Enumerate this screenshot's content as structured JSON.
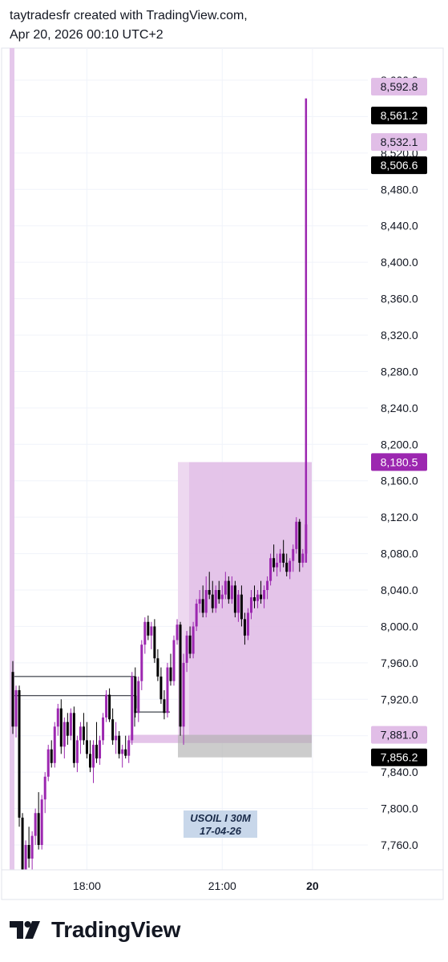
{
  "header": {
    "line1": "taytradesfr created with TradingView.com,",
    "line2": "Apr 20, 2026 00:10 UTC+2"
  },
  "footer": {
    "logo_text": "TradingView",
    "logo_icon": "tradingview-logo-icon"
  },
  "colors": {
    "accent": "#9c27b0",
    "zone": "#e1bee7",
    "candle_up": "#9c27b0",
    "candle_down": "#000000",
    "grid": "#f0f3fa",
    "watermark_bg": "#c8d7ea"
  },
  "chart_data": {
    "type": "candlestick",
    "symbol_label": "USOIL I 30M",
    "date_label": "17-04-26",
    "ylim": [
      7735,
      8620
    ],
    "y_ticks": [
      "7,760.0",
      "7,800.0",
      "7,840.0",
      "7,880.0",
      "7,920.0",
      "7,960.0",
      "8,000.0",
      "8,040.0",
      "8,080.0",
      "8,120.0",
      "8,160.0",
      "8,200.0",
      "8,240.0",
      "8,280.0",
      "8,320.0",
      "8,360.0",
      "8,400.0",
      "8,440.0",
      "8,480.0",
      "8,520.0",
      "8,560.0",
      "8,600.0"
    ],
    "x_ticks": [
      {
        "label": "18:00",
        "bar": 23,
        "bold": false
      },
      {
        "label": "21:00",
        "bar": 65,
        "bold": false
      },
      {
        "label": "20",
        "bar": 93,
        "bold": true
      }
    ],
    "price_labels": [
      {
        "value": "8,592.8",
        "style": "light"
      },
      {
        "value": "8,561.2",
        "style": "dark"
      },
      {
        "value": "8,532.1",
        "style": "light"
      },
      {
        "value": "8,506.6",
        "style": "dark"
      },
      {
        "value": "8,180.5",
        "style": "accent"
      },
      {
        "value": "7,881.0",
        "style": "light"
      },
      {
        "value": "7,856.2",
        "style": "dark"
      }
    ],
    "candles": [
      [
        7950,
        7962,
        7882,
        7890
      ],
      [
        7890,
        7935,
        7878,
        7930
      ],
      [
        7930,
        7935,
        7780,
        7790
      ],
      [
        7790,
        7795,
        7700,
        7720
      ],
      [
        7720,
        7765,
        7715,
        7760
      ],
      [
        7760,
        7780,
        7735,
        7745
      ],
      [
        7745,
        7775,
        7720,
        7770
      ],
      [
        7770,
        7800,
        7760,
        7795
      ],
      [
        7795,
        7818,
        7755,
        7760
      ],
      [
        7760,
        7815,
        7755,
        7810
      ],
      [
        7810,
        7840,
        7795,
        7835
      ],
      [
        7835,
        7870,
        7830,
        7865
      ],
      [
        7865,
        7875,
        7845,
        7850
      ],
      [
        7850,
        7895,
        7845,
        7890
      ],
      [
        7890,
        7915,
        7880,
        7910
      ],
      [
        7910,
        7920,
        7860,
        7868
      ],
      [
        7868,
        7900,
        7855,
        7895
      ],
      [
        7895,
        7905,
        7870,
        7880
      ],
      [
        7880,
        7910,
        7875,
        7905
      ],
      [
        7905,
        7912,
        7845,
        7850
      ],
      [
        7850,
        7880,
        7840,
        7875
      ],
      [
        7875,
        7895,
        7860,
        7890
      ],
      [
        7890,
        7905,
        7870,
        7875
      ],
      [
        7875,
        7895,
        7855,
        7860
      ],
      [
        7860,
        7875,
        7840,
        7845
      ],
      [
        7845,
        7875,
        7828,
        7870
      ],
      [
        7870,
        7895,
        7850,
        7855
      ],
      [
        7855,
        7880,
        7848,
        7875
      ],
      [
        7875,
        7905,
        7870,
        7900
      ],
      [
        7900,
        7930,
        7895,
        7925
      ],
      [
        7925,
        7932,
        7895,
        7898
      ],
      [
        7898,
        7910,
        7870,
        7875
      ],
      [
        7875,
        7895,
        7860,
        7880
      ],
      [
        7880,
        7885,
        7855,
        7860
      ],
      [
        7860,
        7870,
        7845,
        7865
      ],
      [
        7865,
        7880,
        7855,
        7858
      ],
      [
        7858,
        7880,
        7850,
        7875
      ],
      [
        7875,
        7950,
        7870,
        7945
      ],
      [
        7945,
        7955,
        7900,
        7905
      ],
      [
        7905,
        7945,
        7895,
        7940
      ],
      [
        7940,
        7985,
        7930,
        7980
      ],
      [
        7980,
        8010,
        7970,
        8005
      ],
      [
        8005,
        8012,
        7985,
        7990
      ],
      [
        7990,
        8005,
        7975,
        8000
      ],
      [
        8000,
        8008,
        7960,
        7965
      ],
      [
        7965,
        7975,
        7940,
        7945
      ],
      [
        7945,
        7955,
        7915,
        7920
      ],
      [
        7920,
        7930,
        7898,
        7905
      ],
      [
        7905,
        7960,
        7900,
        7955
      ],
      [
        7955,
        7970,
        7935,
        7940
      ],
      [
        7940,
        7990,
        7935,
        7985
      ],
      [
        7985,
        8008,
        7980,
        8002
      ],
      [
        8002,
        8005,
        7880,
        7890
      ],
      [
        7890,
        7970,
        7870,
        7960
      ],
      [
        7960,
        7995,
        7950,
        7990
      ],
      [
        7990,
        8000,
        7965,
        7970
      ],
      [
        7970,
        8005,
        7965,
        8000
      ],
      [
        8000,
        8030,
        7995,
        8025
      ],
      [
        8025,
        8040,
        8015,
        8030
      ],
      [
        8030,
        8045,
        8010,
        8015
      ],
      [
        8015,
        8055,
        8010,
        8040
      ],
      [
        8040,
        8060,
        8030,
        8035
      ],
      [
        8035,
        8050,
        8015,
        8020
      ],
      [
        8020,
        8045,
        8015,
        8040
      ],
      [
        8040,
        8050,
        8025,
        8030
      ],
      [
        8030,
        8045,
        8020,
        8035
      ],
      [
        8035,
        8060,
        8030,
        8050
      ],
      [
        8050,
        8055,
        8025,
        8030
      ],
      [
        8030,
        8055,
        8025,
        8045
      ],
      [
        8045,
        8050,
        8010,
        8015
      ],
      [
        8015,
        8040,
        8005,
        8035
      ],
      [
        8035,
        8045,
        8000,
        8008
      ],
      [
        8008,
        8015,
        7980,
        7990
      ],
      [
        7990,
        8020,
        7985,
        8015
      ],
      [
        8015,
        8040,
        8008,
        8032
      ],
      [
        8032,
        8045,
        8020,
        8028
      ],
      [
        8028,
        8040,
        8020,
        8035
      ],
      [
        8035,
        8050,
        8025,
        8030
      ],
      [
        8030,
        8045,
        8020,
        8040
      ],
      [
        8040,
        8055,
        8030,
        8050
      ],
      [
        8050,
        8080,
        8045,
        8075
      ],
      [
        8075,
        8090,
        8060,
        8065
      ],
      [
        8065,
        8080,
        8055,
        8070
      ],
      [
        8070,
        8085,
        8060,
        8080
      ],
      [
        8080,
        8095,
        8065,
        8070
      ],
      [
        8070,
        8080,
        8055,
        8060
      ],
      [
        8060,
        8075,
        8052,
        8072
      ],
      [
        8072,
        8090,
        8060,
        8085
      ],
      [
        8085,
        8120,
        8080,
        8115
      ],
      [
        8115,
        8118,
        8060,
        8070
      ],
      [
        8070,
        8085,
        8065,
        8080
      ],
      [
        8080,
        8580,
        8070,
        8112
      ]
    ]
  }
}
